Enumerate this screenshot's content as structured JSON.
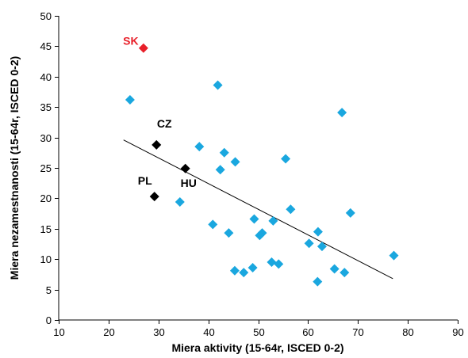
{
  "chart_data": {
    "type": "scatter",
    "title": "",
    "xlabel": "Miera aktivity (15-64r, ISCED 0-2)",
    "ylabel": "Miera nezamestnanosti (15-64r, ISCED 0-2)",
    "xlim": [
      10,
      90
    ],
    "ylim": [
      0,
      50
    ],
    "xticks": [
      10,
      20,
      30,
      40,
      50,
      60,
      70,
      80,
      90
    ],
    "yticks": [
      0,
      5,
      10,
      15,
      20,
      25,
      30,
      35,
      40,
      45,
      50
    ],
    "grid": false,
    "legend": "none",
    "colors": {
      "default": "#1aa7df",
      "highlight": "#000000",
      "focus": "#e8202a"
    },
    "series": [
      {
        "points": [
          {
            "x": 24.3,
            "y": 36.2
          },
          {
            "x": 41.9,
            "y": 38.6
          },
          {
            "x": 66.8,
            "y": 34.1
          },
          {
            "x": 38.2,
            "y": 28.5
          },
          {
            "x": 43.2,
            "y": 27.5
          },
          {
            "x": 42.4,
            "y": 24.7
          },
          {
            "x": 45.4,
            "y": 26.0
          },
          {
            "x": 55.5,
            "y": 26.5
          },
          {
            "x": 34.3,
            "y": 19.4
          },
          {
            "x": 56.5,
            "y": 18.2
          },
          {
            "x": 68.5,
            "y": 17.6
          },
          {
            "x": 49.2,
            "y": 16.6
          },
          {
            "x": 53.0,
            "y": 16.3
          },
          {
            "x": 40.9,
            "y": 15.7
          },
          {
            "x": 44.1,
            "y": 14.3
          },
          {
            "x": 50.8,
            "y": 14.3
          },
          {
            "x": 50.3,
            "y": 13.9
          },
          {
            "x": 62.0,
            "y": 14.5
          },
          {
            "x": 60.2,
            "y": 12.6
          },
          {
            "x": 62.8,
            "y": 12.1
          },
          {
            "x": 77.2,
            "y": 10.6
          },
          {
            "x": 52.7,
            "y": 9.5
          },
          {
            "x": 54.1,
            "y": 9.2
          },
          {
            "x": 48.9,
            "y": 8.6
          },
          {
            "x": 45.3,
            "y": 8.1
          },
          {
            "x": 47.1,
            "y": 7.8
          },
          {
            "x": 65.3,
            "y": 8.4
          },
          {
            "x": 67.3,
            "y": 7.8
          },
          {
            "x": 61.9,
            "y": 6.3
          }
        ]
      },
      {
        "points": [
          {
            "x": 29.6,
            "y": 28.8,
            "label": "CZ"
          },
          {
            "x": 35.4,
            "y": 24.9,
            "label": "HU"
          },
          {
            "x": 29.2,
            "y": 20.3,
            "label": "PL"
          }
        ]
      },
      {
        "points": [
          {
            "x": 27.0,
            "y": 44.7,
            "label": "SK"
          }
        ]
      }
    ],
    "trendline": {
      "type": "linear",
      "x": [
        23.0,
        77.0
      ],
      "y": [
        29.6,
        6.8
      ]
    }
  }
}
